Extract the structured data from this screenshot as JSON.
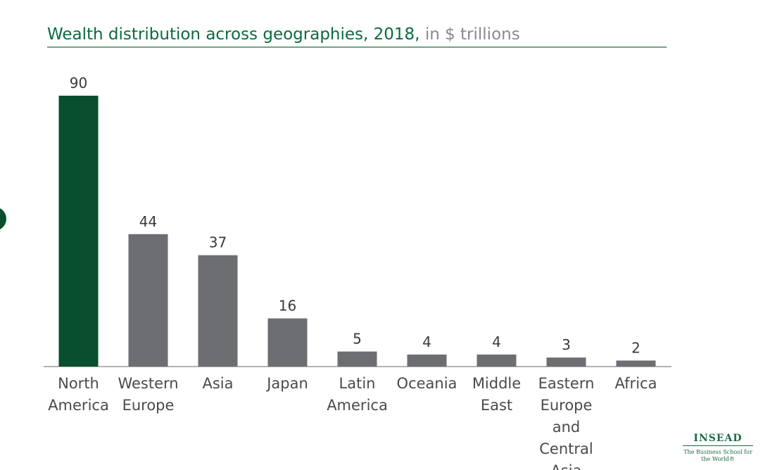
{
  "chart_data": {
    "type": "bar",
    "title": "Wealth distribution across geographies, 2018,",
    "subtitle": "in $ trillions",
    "categories": [
      "North America",
      "Western Europe",
      "Asia",
      "Japan",
      "Latin America",
      "Oceania",
      "Middle East",
      "Eastern Europe and Central Asia",
      "Africa"
    ],
    "values": [
      90,
      44,
      37,
      16,
      5,
      4,
      4,
      3,
      2
    ],
    "colors": [
      "#074f2d",
      "#6d6e71",
      "#6d6e71",
      "#6d6e71",
      "#6d6e71",
      "#6d6e71",
      "#6d6e71",
      "#6d6e71",
      "#6d6e71"
    ],
    "ylim": [
      0,
      90
    ]
  },
  "logo": {
    "name": "INSEAD",
    "tagline": "The Business School for the World®"
  }
}
